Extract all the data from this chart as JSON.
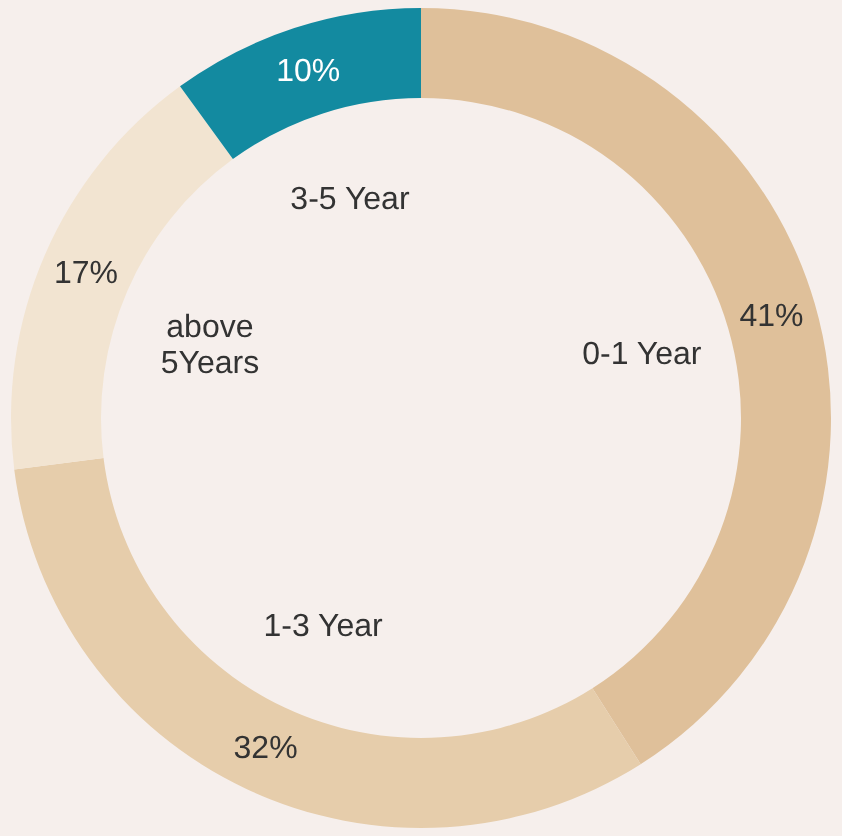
{
  "chart_data": {
    "type": "donut",
    "categories": [
      "0-1 Year",
      "1-3 Year",
      "above 5Years",
      "3-5 Year"
    ],
    "values": [
      41,
      32,
      17,
      10
    ],
    "colors": [
      "#dfc09a",
      "#e6cdab",
      "#f2e4d1",
      "#138aa0"
    ],
    "value_labels": [
      "41%",
      "32%",
      "17%",
      "10%"
    ]
  }
}
